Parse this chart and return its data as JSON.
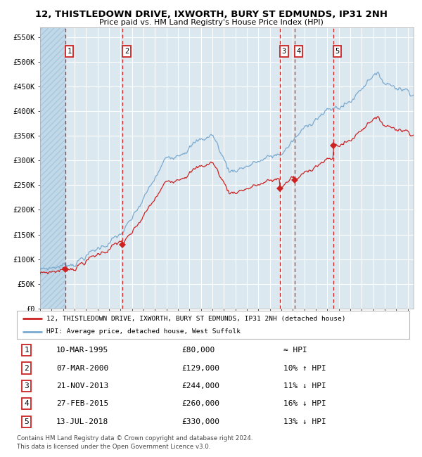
{
  "title": "12, THISTLEDOWN DRIVE, IXWORTH, BURY ST EDMUNDS, IP31 2NH",
  "subtitle": "Price paid vs. HM Land Registry's House Price Index (HPI)",
  "legend_line1": "12, THISTLEDOWN DRIVE, IXWORTH, BURY ST EDMUNDS, IP31 2NH (detached house)",
  "legend_line2": "HPI: Average price, detached house, West Suffolk",
  "footer1": "Contains HM Land Registry data © Crown copyright and database right 2024.",
  "footer2": "This data is licensed under the Open Government Licence v3.0.",
  "sales": [
    {
      "num": 1,
      "date": "10-MAR-1995",
      "price": 80000,
      "rel": "≈ HPI",
      "x_year": 1995.19
    },
    {
      "num": 2,
      "date": "07-MAR-2000",
      "price": 129000,
      "rel": "10% ↑ HPI",
      "x_year": 2000.18
    },
    {
      "num": 3,
      "date": "21-NOV-2013",
      "price": 244000,
      "rel": "11% ↓ HPI",
      "x_year": 2013.89
    },
    {
      "num": 4,
      "date": "27-FEB-2015",
      "price": 260000,
      "rel": "16% ↓ HPI",
      "x_year": 2015.16
    },
    {
      "num": 5,
      "date": "13-JUL-2018",
      "price": 330000,
      "rel": "13% ↓ HPI",
      "x_year": 2018.53
    }
  ],
  "ylim": [
    0,
    570000
  ],
  "xlim_start": 1993.0,
  "xlim_end": 2025.5,
  "yticks": [
    0,
    50000,
    100000,
    150000,
    200000,
    250000,
    300000,
    350000,
    400000,
    450000,
    500000,
    550000
  ],
  "ytick_labels": [
    "£0",
    "£50K",
    "£100K",
    "£150K",
    "£200K",
    "£250K",
    "£300K",
    "£350K",
    "£400K",
    "£450K",
    "£500K",
    "£550K"
  ],
  "hpi_color": "#7aaad0",
  "price_color": "#cc2222",
  "sale_marker_color": "#cc2222",
  "vline_color": "#cc2222",
  "bg_color": "#ffffff",
  "plot_bg_color": "#dce8f0",
  "grid_color": "#ffffff",
  "label_box_color": "#cc2222"
}
